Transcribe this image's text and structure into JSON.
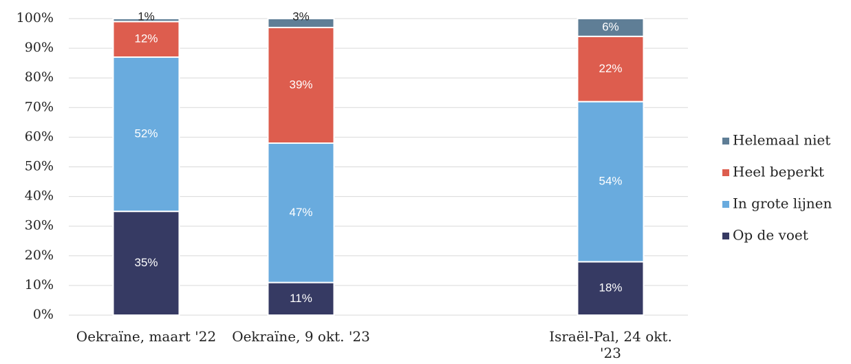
{
  "chart_data": {
    "type": "stacked_bar",
    "categories": [
      "Oekraïne, maart '22",
      "Oekraïne, 9 okt. '23",
      null,
      "Israël-Pal, 24 okt. '23"
    ],
    "series": [
      {
        "name": "Op de voet",
        "color": "#363a63",
        "values": [
          35,
          11,
          null,
          18
        ],
        "value_labels": [
          "35%",
          "11%",
          null,
          "18%"
        ]
      },
      {
        "name": "In grote lijnen",
        "color": "#69abde",
        "values": [
          52,
          47,
          null,
          54
        ],
        "value_labels": [
          "52%",
          "47%",
          null,
          "54%"
        ]
      },
      {
        "name": "Heel beperkt",
        "color": "#dd5d4e",
        "values": [
          12,
          39,
          null,
          22
        ],
        "value_labels": [
          "12%",
          "39%",
          null,
          "22%"
        ]
      },
      {
        "name": "Helemaal niet",
        "color": "#5f7e96",
        "values": [
          1,
          3,
          null,
          6
        ],
        "value_labels": [
          "1%",
          "3%",
          null,
          "6%"
        ]
      }
    ],
    "ylim": [
      0,
      100
    ],
    "yticks": [
      {
        "value": 0,
        "label": "0%"
      },
      {
        "value": 10,
        "label": "10%"
      },
      {
        "value": 20,
        "label": "20%"
      },
      {
        "value": 30,
        "label": "30%"
      },
      {
        "value": 40,
        "label": "40%"
      },
      {
        "value": 50,
        "label": "50%"
      },
      {
        "value": 60,
        "label": "60%"
      },
      {
        "value": 70,
        "label": "70%"
      },
      {
        "value": 80,
        "label": "80%"
      },
      {
        "value": 90,
        "label": "90%"
      },
      {
        "value": 100,
        "label": "100%"
      }
    ],
    "grid": true,
    "legend": "right"
  }
}
